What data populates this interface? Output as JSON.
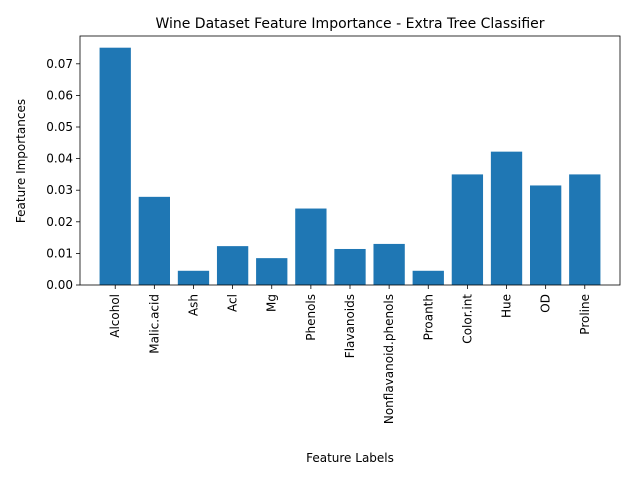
{
  "chart_data": {
    "type": "bar",
    "title": "Wine Dataset Feature Importance - Extra Tree Classifier",
    "xlabel": "Feature Labels",
    "ylabel": "Feature Importances",
    "categories": [
      "Alcohol",
      "Malic.acid",
      "Ash",
      "Acl",
      "Mg",
      "Phenols",
      "Flavanoids",
      "Nonflavanoid.phenols",
      "Proanth",
      "Color.int",
      "Hue",
      "OD",
      "Proline"
    ],
    "values": [
      0.0751,
      0.0279,
      0.0045,
      0.0123,
      0.0085,
      0.0242,
      0.0114,
      0.013,
      0.0045,
      0.035,
      0.0422,
      0.0315,
      0.035
    ],
    "ylim": [
      0,
      0.0788
    ],
    "yticks": [
      0.0,
      0.01,
      0.02,
      0.03,
      0.04,
      0.05,
      0.06,
      0.07
    ],
    "ytick_labels": [
      "0.00",
      "0.01",
      "0.02",
      "0.03",
      "0.04",
      "0.05",
      "0.06",
      "0.07"
    ],
    "bar_color": "#1f77b4",
    "grid": false,
    "legend": "none"
  }
}
